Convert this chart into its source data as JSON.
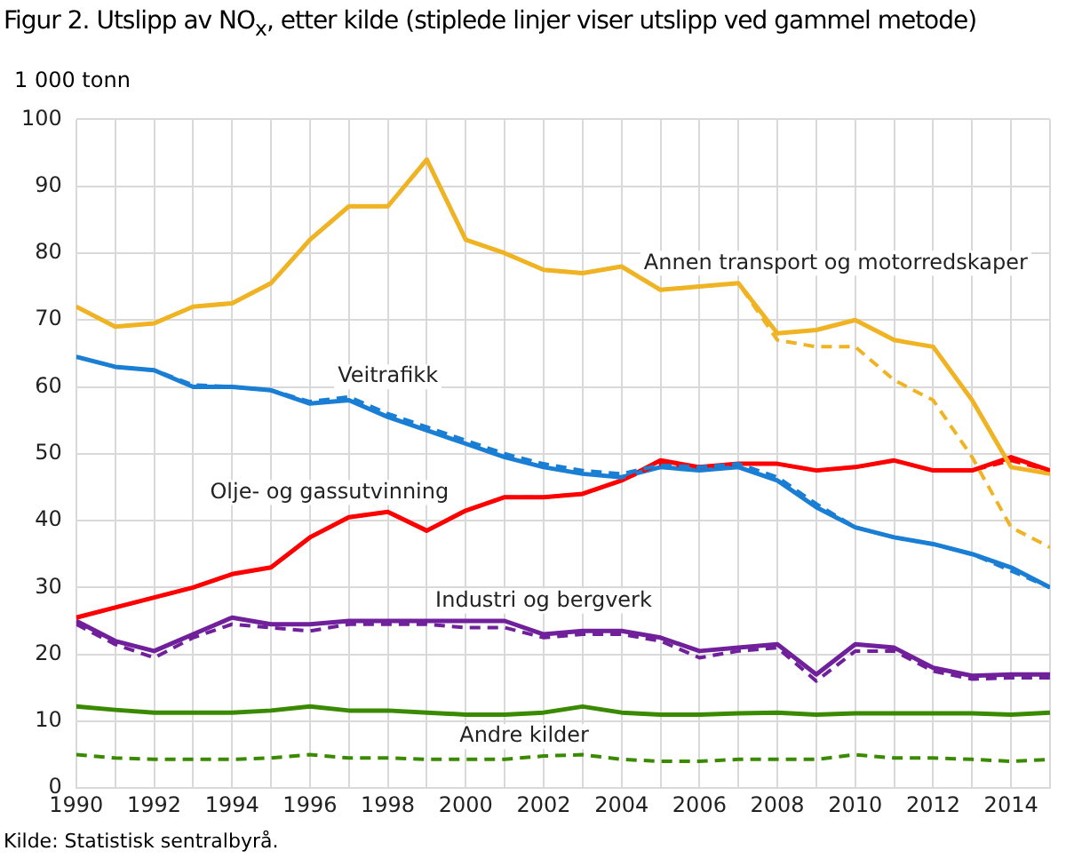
{
  "chart_data": {
    "type": "line",
    "title": "Figur 2. Utslipp av NO$_{x}$, etter kilde (stiplede linjer viser utslipp ved gammel metode)",
    "ylabel": "1 000 tonn",
    "x": [
      1990,
      1991,
      1992,
      1993,
      1994,
      1995,
      1996,
      1997,
      1998,
      1999,
      2000,
      2001,
      2002,
      2003,
      2004,
      2005,
      2006,
      2007,
      2008,
      2009,
      2010,
      2011,
      2012,
      2013,
      2014,
      2015
    ],
    "xlim": [
      1990,
      2015
    ],
    "xticks": [
      1990,
      {
        "value": 1991,
        "label": null
      },
      1992,
      {
        "value": 1993,
        "label": null
      },
      1994,
      {
        "value": 1995,
        "label": null
      },
      1996,
      {
        "value": 1997,
        "label": null
      },
      1998,
      {
        "value": 1999,
        "label": null
      },
      2000,
      {
        "value": 2001,
        "label": null
      },
      2002,
      {
        "value": 2003,
        "label": null
      },
      2004,
      {
        "value": 2005,
        "label": null
      },
      2006,
      {
        "value": 2007,
        "label": null
      },
      2008,
      {
        "value": 2009,
        "label": null
      },
      2010,
      {
        "value": 2011,
        "label": null
      },
      2012,
      {
        "value": 2013,
        "label": null
      },
      2014,
      {
        "value": 2015,
        "label": null
      }
    ],
    "ylim": [
      0,
      100
    ],
    "yticks": [
      0,
      10,
      20,
      30,
      40,
      50,
      60,
      70,
      80,
      90,
      100
    ],
    "grid": true,
    "legend": false,
    "marker": "none",
    "series": [
      {
        "name": "Annen transport og motorredskaper",
        "color": "#efb323",
        "line_style": "solid",
        "values": [
          72,
          69,
          69.5,
          72,
          72.5,
          75.5,
          82,
          87,
          87,
          94,
          82,
          80,
          77.5,
          77,
          78,
          74.5,
          75,
          75.5,
          68,
          68.5,
          70,
          67,
          66,
          58,
          48,
          47
        ]
      },
      {
        "color": "#efb323",
        "line_style": "dashed",
        "values": [
          72,
          69,
          69.5,
          72,
          72.5,
          75.5,
          82,
          87,
          87,
          94,
          82,
          80,
          77.5,
          77,
          78,
          74.5,
          75,
          75.5,
          67,
          66,
          66,
          61,
          58,
          49.5,
          39,
          36
        ]
      },
      {
        "name": "Veitrafikk",
        "color": "#1a7fd4",
        "line_style": "solid",
        "values": [
          64.5,
          63,
          62.5,
          60,
          60,
          59.5,
          57.5,
          58,
          55.5,
          53.5,
          51.5,
          49.5,
          48,
          47,
          46.5,
          48,
          47.5,
          48,
          46,
          42,
          39,
          37.5,
          36.5,
          35,
          33,
          30
        ]
      },
      {
        "color": "#1a7fd4",
        "line_style": "dashed",
        "values": [
          64.5,
          63,
          62.5,
          60.3,
          60,
          59.5,
          57.8,
          58.5,
          56,
          54,
          52,
          50,
          48.5,
          47.5,
          47,
          48.3,
          48,
          48.5,
          46.5,
          42.5,
          39,
          37.5,
          36.5,
          35,
          32.5,
          30
        ]
      },
      {
        "name": "Olje- og gassutvinning",
        "color": "#ff0000",
        "line_style": "solid",
        "values": [
          25.5,
          27,
          28.5,
          30,
          32,
          33,
          37.5,
          40.5,
          41.3,
          38.5,
          41.5,
          43.5,
          43.5,
          44,
          46,
          49,
          48,
          48.5,
          48.5,
          47.5,
          48,
          49,
          47.5,
          47.5,
          49.5,
          47.5
        ]
      },
      {
        "color": "#ff0000",
        "line_style": "dashed",
        "values": [
          25.5,
          27,
          28.5,
          30,
          32,
          33,
          37.5,
          40.5,
          41.3,
          38.5,
          41.5,
          43.5,
          43.5,
          44,
          46,
          48.5,
          48,
          48.5,
          48.5,
          47.5,
          48,
          49,
          47.5,
          47.5,
          49,
          47.5
        ]
      },
      {
        "name": "Industri og bergverk",
        "color": "#70209a",
        "line_style": "solid",
        "values": [
          25,
          22,
          20.5,
          23,
          25.5,
          24.5,
          24.5,
          25,
          25,
          25,
          25,
          25,
          23,
          23.5,
          23.5,
          22.5,
          20.5,
          21,
          21.5,
          17,
          21.5,
          21,
          18,
          16.8,
          17,
          17
        ]
      },
      {
        "color": "#70209a",
        "line_style": "dashed",
        "values": [
          24.5,
          21.5,
          19.5,
          22.5,
          24.5,
          24,
          23.5,
          24.5,
          24.5,
          24.5,
          24,
          24,
          22.5,
          23,
          23,
          22,
          19.5,
          20.5,
          21,
          16,
          20.5,
          20.5,
          17.5,
          16.3,
          16.5,
          16.5
        ]
      },
      {
        "name": "Andre kilder",
        "color": "#3a8a00",
        "line_style": "solid",
        "values": [
          12.2,
          11.7,
          11.3,
          11.3,
          11.3,
          11.6,
          12.2,
          11.6,
          11.6,
          11.3,
          11,
          11,
          11.3,
          12.2,
          11.3,
          11,
          11,
          11.2,
          11.3,
          11,
          11.2,
          11.2,
          11.2,
          11.2,
          11,
          11.3
        ]
      },
      {
        "color": "#3a8a00",
        "line_style": "dashed",
        "values": [
          5,
          4.5,
          4.3,
          4.3,
          4.3,
          4.5,
          5,
          4.5,
          4.5,
          4.3,
          4.3,
          4.3,
          4.8,
          5,
          4.3,
          4,
          4,
          4.3,
          4.3,
          4.3,
          5,
          4.5,
          4.5,
          4.3,
          4,
          4.3
        ]
      }
    ],
    "annotations": [
      "Kilde: Statistisk sentralbyrå."
    ]
  }
}
